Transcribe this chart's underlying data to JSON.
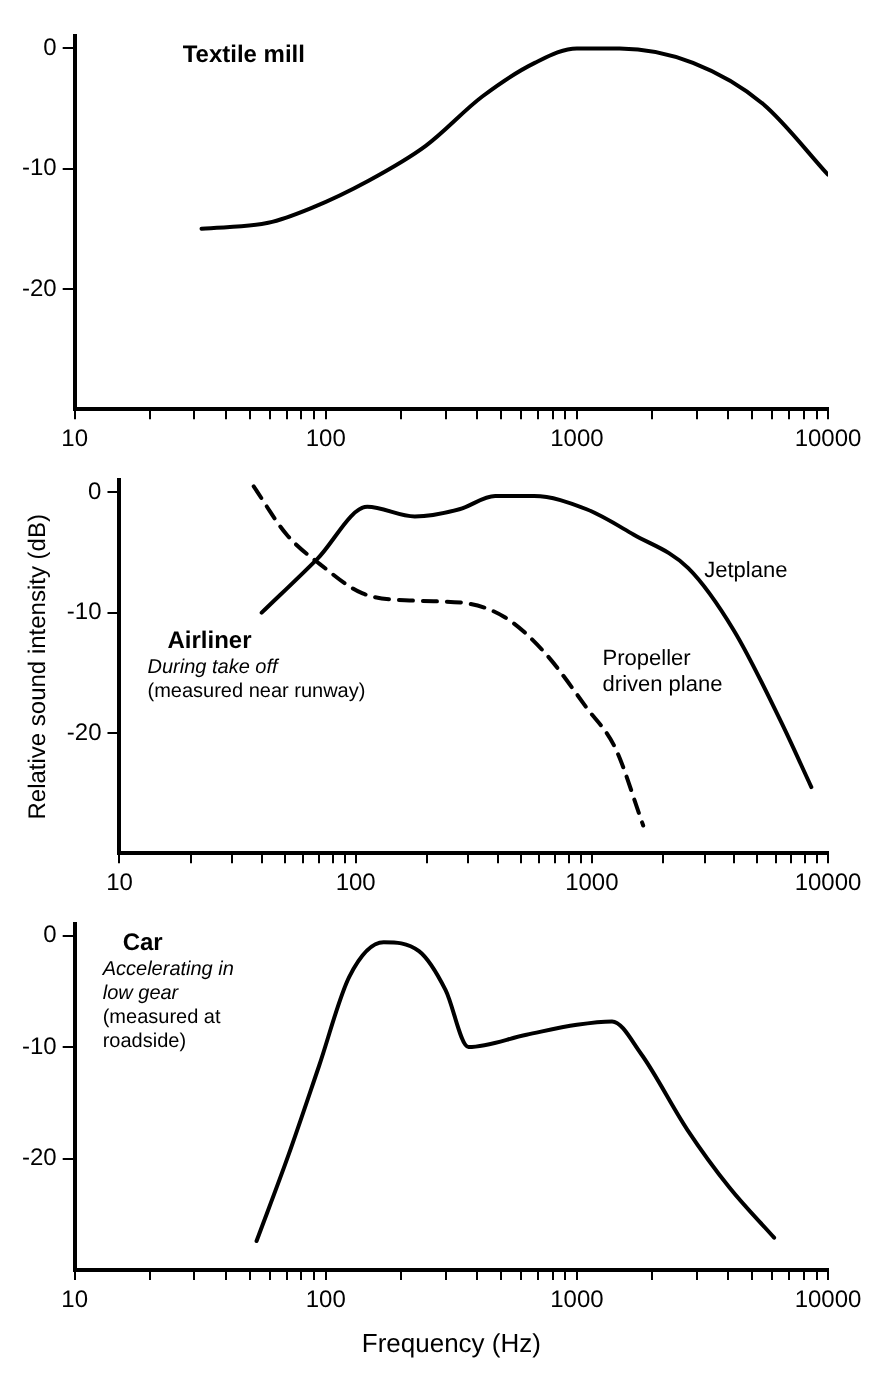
{
  "chart_data": [
    {
      "type": "line",
      "title": "Textile mill",
      "xlim": [
        10,
        10000
      ],
      "ylim": [
        -30,
        1
      ],
      "log": "x",
      "grid": false,
      "legend": false,
      "marker": "none",
      "xticks": [
        10,
        {
          "value": 20,
          "label": null
        },
        {
          "value": 30,
          "label": null
        },
        {
          "value": 40,
          "label": null
        },
        {
          "value": 50,
          "label": null
        },
        {
          "value": 60,
          "label": null
        },
        {
          "value": 70,
          "label": null
        },
        {
          "value": 80,
          "label": null
        },
        {
          "value": 90,
          "label": null
        },
        100,
        {
          "value": 200,
          "label": null
        },
        {
          "value": 300,
          "label": null
        },
        {
          "value": 400,
          "label": null
        },
        {
          "value": 500,
          "label": null
        },
        {
          "value": 600,
          "label": null
        },
        {
          "value": 700,
          "label": null
        },
        {
          "value": 800,
          "label": null
        },
        {
          "value": 900,
          "label": null
        },
        1000,
        {
          "value": 2000,
          "label": null
        },
        {
          "value": 3000,
          "label": null
        },
        {
          "value": 4000,
          "label": null
        },
        {
          "value": 5000,
          "label": null
        },
        {
          "value": 6000,
          "label": null
        },
        {
          "value": 7000,
          "label": null
        },
        {
          "value": 8000,
          "label": null
        },
        {
          "value": 9000,
          "label": null
        },
        10000
      ],
      "yticks": [
        0,
        -10,
        -20
      ],
      "series": [
        {
          "color": "#000000",
          "line_style": "solid",
          "x": [
            32,
            59,
            87,
            148,
            250,
            420,
            680,
            1000,
            1480,
            2900,
            5500,
            10000
          ],
          "values": [
            -15,
            -14.5,
            -13.3,
            -11,
            -8.1,
            -4,
            -1.2,
            0,
            0,
            -1.2,
            -4.6,
            -10.5
          ]
        }
      ]
    },
    {
      "type": "line",
      "title": "Airliner",
      "ylabel": "Relative sound intensity (dB)",
      "annotations": [
        "During take off",
        "(measured near runway)"
      ],
      "xlim": [
        10,
        10000
      ],
      "ylim": [
        -30,
        1
      ],
      "log": "x",
      "grid": false,
      "legend": false,
      "marker": "none",
      "xticks": [
        10,
        {
          "value": 20,
          "label": null
        },
        {
          "value": 30,
          "label": null
        },
        {
          "value": 40,
          "label": null
        },
        {
          "value": 50,
          "label": null
        },
        {
          "value": 60,
          "label": null
        },
        {
          "value": 70,
          "label": null
        },
        {
          "value": 80,
          "label": null
        },
        {
          "value": 90,
          "label": null
        },
        100,
        {
          "value": 200,
          "label": null
        },
        {
          "value": 300,
          "label": null
        },
        {
          "value": 400,
          "label": null
        },
        {
          "value": 500,
          "label": null
        },
        {
          "value": 600,
          "label": null
        },
        {
          "value": 700,
          "label": null
        },
        {
          "value": 800,
          "label": null
        },
        {
          "value": 900,
          "label": null
        },
        1000,
        {
          "value": 2000,
          "label": null
        },
        {
          "value": 3000,
          "label": null
        },
        {
          "value": 4000,
          "label": null
        },
        {
          "value": 5000,
          "label": null
        },
        {
          "value": 6000,
          "label": null
        },
        {
          "value": 7000,
          "label": null
        },
        {
          "value": 8000,
          "label": null
        },
        {
          "value": 9000,
          "label": null
        },
        10000
      ],
      "yticks": [
        0,
        -10,
        -20
      ],
      "series": [
        {
          "name": "Jetplane",
          "color": "#000000",
          "line_style": "solid",
          "x": [
            40,
            69,
            112,
            178,
            275,
            390,
            570,
            950,
            1500,
            2560,
            4000,
            6300,
            8500
          ],
          "values": [
            -10,
            -5.5,
            -1.2,
            -2,
            -1.4,
            -0.3,
            -0.3,
            -1.4,
            -3.5,
            -6.3,
            -11.5,
            -19,
            -24.5
          ]
        },
        {
          "name": "Propeller driven plane",
          "color": "#000000",
          "line_style": "dashed",
          "x": [
            37,
            51,
            71,
            107,
            178,
            290,
            430,
            630,
            950,
            1260,
            1650
          ],
          "values": [
            0.5,
            -3.5,
            -6,
            -8.4,
            -9,
            -9.2,
            -10.4,
            -13.3,
            -17.9,
            -21.3,
            -27.7
          ]
        }
      ]
    },
    {
      "type": "line",
      "title": "Car",
      "xlabel": "Frequency (Hz)",
      "annotations": [
        "Accelerating in low gear",
        "(measured at roadside)"
      ],
      "xlim": [
        10,
        10000
      ],
      "ylim": [
        -30,
        1
      ],
      "log": "x",
      "grid": false,
      "legend": false,
      "marker": "none",
      "xticks": [
        10,
        {
          "value": 20,
          "label": null
        },
        {
          "value": 30,
          "label": null
        },
        {
          "value": 40,
          "label": null
        },
        {
          "value": 50,
          "label": null
        },
        {
          "value": 60,
          "label": null
        },
        {
          "value": 70,
          "label": null
        },
        {
          "value": 80,
          "label": null
        },
        {
          "value": 90,
          "label": null
        },
        100,
        {
          "value": 200,
          "label": null
        },
        {
          "value": 300,
          "label": null
        },
        {
          "value": 400,
          "label": null
        },
        {
          "value": 500,
          "label": null
        },
        {
          "value": 600,
          "label": null
        },
        {
          "value": 700,
          "label": null
        },
        {
          "value": 800,
          "label": null
        },
        {
          "value": 900,
          "label": null
        },
        1000,
        {
          "value": 2000,
          "label": null
        },
        {
          "value": 3000,
          "label": null
        },
        {
          "value": 4000,
          "label": null
        },
        {
          "value": 5000,
          "label": null
        },
        {
          "value": 6000,
          "label": null
        },
        {
          "value": 7000,
          "label": null
        },
        {
          "value": 8000,
          "label": null
        },
        {
          "value": 9000,
          "label": null
        },
        10000
      ],
      "yticks": [
        0,
        -10,
        -20
      ],
      "series": [
        {
          "color": "#000000",
          "line_style": "solid",
          "x": [
            53,
            71,
            94,
            124,
            170,
            235,
            300,
            370,
            630,
            1000,
            1380,
            1800,
            2750,
            4050,
            6100
          ],
          "values": [
            -27.4,
            -19.7,
            -11.7,
            -3.7,
            -0.6,
            -1.4,
            -4.9,
            -10,
            -8.9,
            -8,
            -7.7,
            -10.6,
            -17.4,
            -22.6,
            -27.1
          ]
        }
      ]
    }
  ]
}
